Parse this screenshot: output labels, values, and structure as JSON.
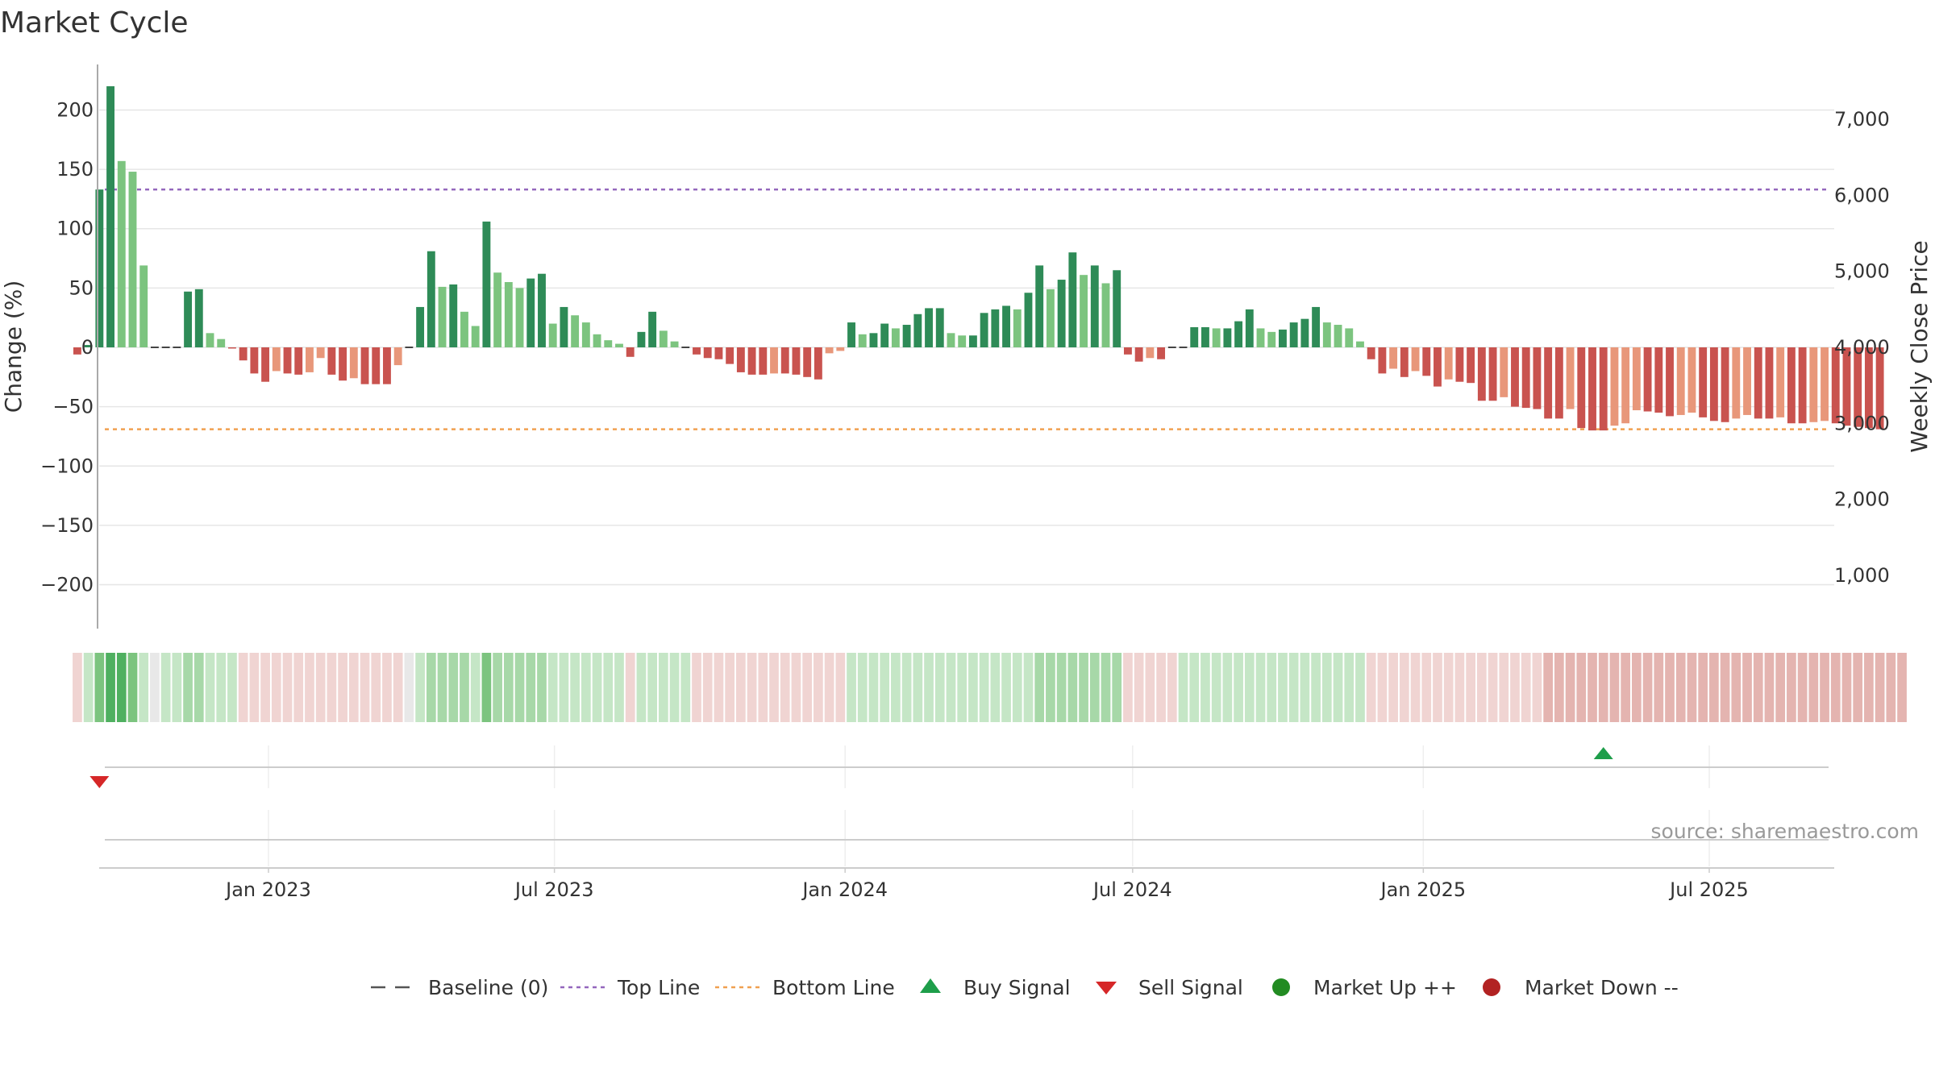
{
  "chart_data": {
    "type": "bar",
    "title": "Market Cycle",
    "ylabel": "Change (%)",
    "y2label": "Weekly Close Price",
    "ylim": [
      -240,
      240
    ],
    "yticks": [
      200,
      150,
      100,
      50,
      0,
      -50,
      -100,
      -150,
      -200
    ],
    "ytick_labels": [
      "200",
      "150",
      "100",
      "50",
      "0",
      "−50",
      "−100",
      "−150",
      "−200"
    ],
    "y2ticks": [
      7000,
      6000,
      5000,
      4000,
      3000,
      2000,
      1000
    ],
    "y2tick_labels": [
      "7,000",
      "6,000",
      "5,000",
      "4,000",
      "3,000",
      "2,000",
      "1,000"
    ],
    "xtick_labels": [
      {
        "label": "Jan 2023",
        "date": "2023-01-01"
      },
      {
        "label": "Jul 2023",
        "date": "2023-07-01"
      },
      {
        "label": "Jan 2024",
        "date": "2024-01-01"
      },
      {
        "label": "Jul 2024",
        "date": "2024-07-01"
      },
      {
        "label": "Jan 2025",
        "date": "2025-01-01"
      },
      {
        "label": "Jul 2025",
        "date": "2025-07-01"
      }
    ],
    "top_line": 133,
    "bottom_line": -69,
    "grid": true,
    "legend_placement": "bottom",
    "first_week": "2022-09-02",
    "values": [
      -6,
      2,
      133,
      220,
      157,
      148,
      69,
      0,
      0,
      0,
      47,
      49,
      12,
      7,
      -1,
      -11,
      -22,
      -29,
      -20,
      -22,
      -23,
      -21,
      -9,
      -23,
      -28,
      -26,
      -31,
      -31,
      -31,
      -15,
      0,
      34,
      81,
      51,
      53,
      30,
      18,
      106,
      63,
      55,
      50,
      58,
      62,
      20,
      34,
      27,
      21,
      11,
      6,
      3,
      -8,
      13,
      30,
      14,
      5,
      0,
      -6,
      -9,
      -10,
      -14,
      -21,
      -23,
      -23,
      -22,
      -22,
      -23,
      -25,
      -27,
      -5,
      -3,
      21,
      11,
      12,
      20,
      16,
      19,
      28,
      33,
      33,
      12,
      10,
      10,
      29,
      32,
      35,
      32,
      46,
      69,
      49,
      57,
      80,
      61,
      69,
      54,
      65,
      -6,
      -12,
      -9,
      -10,
      0,
      0,
      17,
      17,
      16,
      16,
      22,
      32,
      16,
      13,
      15,
      21,
      24,
      34,
      21,
      19,
      16,
      5,
      -10,
      -22,
      -18,
      -25,
      -20,
      -24,
      -33,
      -27,
      -29,
      -30,
      -45,
      -45,
      -42,
      -50,
      -51,
      -52,
      -60,
      -60,
      -52,
      -68,
      -70,
      -70,
      -66,
      -64,
      -53,
      -54,
      -55,
      -58,
      -57,
      -55,
      -59,
      -62,
      -63,
      -60,
      -57,
      -60,
      -60,
      -59,
      -64,
      -64,
      -63,
      -62,
      -64,
      -66,
      -67,
      -68,
      -69
    ],
    "band_levels": [
      -1,
      1,
      3,
      4,
      4,
      3,
      1,
      0,
      1,
      1,
      2,
      2,
      1,
      1,
      1,
      -1,
      -1,
      -1,
      -1,
      -1,
      -1,
      -1,
      -1,
      -1,
      -1,
      -1,
      -1,
      -1,
      -1,
      -1,
      0,
      1,
      2,
      2,
      2,
      2,
      1,
      3,
      2,
      2,
      2,
      2,
      2,
      1,
      1,
      1,
      1,
      1,
      1,
      1,
      -1,
      1,
      1,
      1,
      1,
      1,
      -1,
      -1,
      -1,
      -1,
      -1,
      -1,
      -1,
      -1,
      -1,
      -1,
      -1,
      -1,
      -1,
      -1,
      1,
      1,
      1,
      1,
      1,
      1,
      1,
      1,
      1,
      1,
      1,
      1,
      1,
      1,
      1,
      1,
      1,
      2,
      2,
      2,
      2,
      2,
      2,
      2,
      2,
      -1,
      -1,
      -1,
      -1,
      -1,
      1,
      1,
      1,
      1,
      1,
      1,
      1,
      1,
      1,
      1,
      1,
      1,
      1,
      1,
      1,
      1,
      1,
      -1,
      -1,
      -1,
      -1,
      -1,
      -1,
      -1,
      -1,
      -1,
      -1,
      -1,
      -1,
      -1,
      -1,
      -1,
      -1,
      -2,
      -2,
      -2,
      -2,
      -2,
      -2,
      -2,
      -2,
      -2,
      -2,
      -2,
      -2,
      -2,
      -2,
      -2,
      -2,
      -2,
      -2,
      -2,
      -2,
      -2,
      -2,
      -2,
      -2,
      -2,
      -2,
      -2,
      -2,
      -2,
      -2,
      -2,
      -2,
      -2
    ],
    "signals": [
      {
        "type": "sell",
        "date": "2022-09-16"
      },
      {
        "type": "buy",
        "date": "2025-04-25"
      }
    ],
    "source": "source: sharemaestro.com",
    "legend": [
      "Baseline (0)",
      "Top Line",
      "Bottom Line",
      "Buy Signal",
      "Sell Signal",
      "Market Up ++",
      "Market Down --"
    ]
  },
  "colors": {
    "up_strong": "#2e8b57",
    "up_weak": "#7cc47f",
    "down_strong": "#c9534f",
    "down_weak": "#e8977a",
    "top_line": "#9467bd",
    "bottom_line": "#f0a050",
    "buy": "#1e9e4a",
    "sell": "#d62728",
    "market_up": "#228b22",
    "market_down": "#b22222",
    "baseline": "#555555"
  }
}
